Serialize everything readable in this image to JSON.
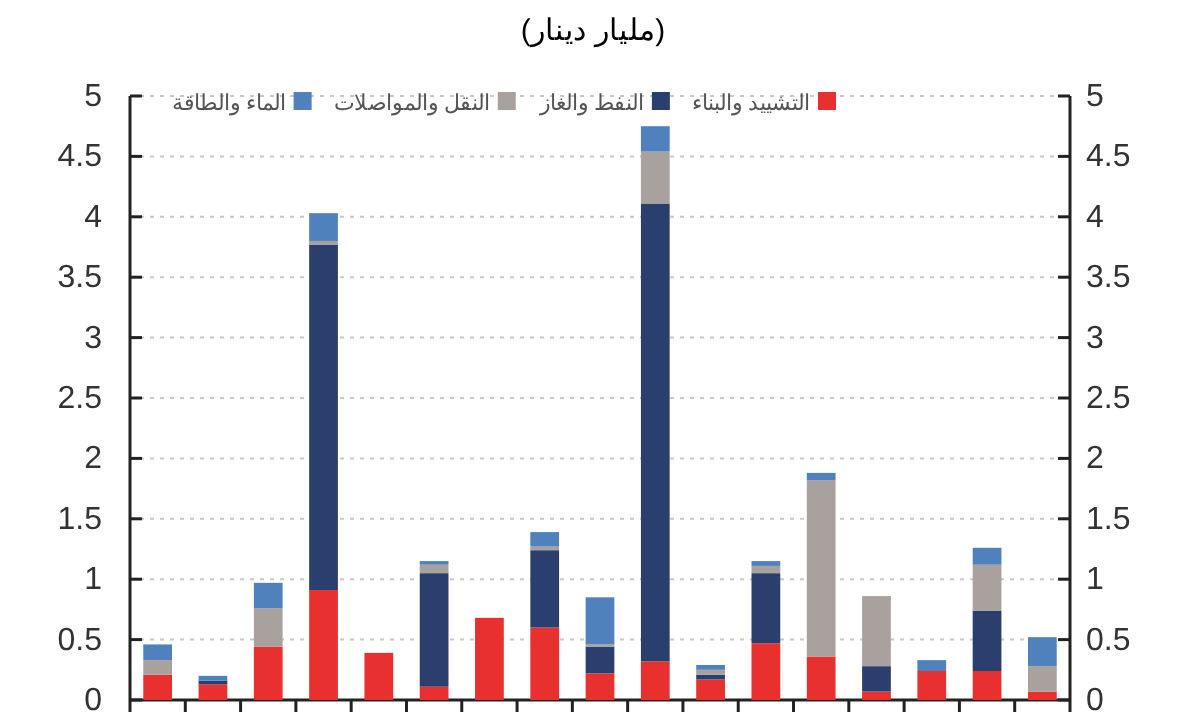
{
  "chart_data": {
    "type": "bar",
    "stacked": true,
    "title": "(مليار دينار)",
    "categories": [
      null,
      null,
      null,
      null,
      null,
      null,
      null,
      null,
      null,
      null,
      null,
      null,
      null,
      null,
      null,
      null,
      null
    ],
    "series": [
      {
        "name": "التشييد والبناء",
        "color": "#e8312f",
        "values": [
          0.21,
          0.13,
          0.44,
          0.91,
          0.39,
          0.11,
          0.68,
          0.6,
          0.22,
          0.32,
          0.17,
          0.47,
          0.36,
          0.07,
          0.24,
          0.24,
          0.07
        ]
      },
      {
        "name": "النفط والغاز",
        "color": "#2b3f6e",
        "values": [
          0,
          0.03,
          0,
          2.86,
          0,
          0.94,
          0,
          0.64,
          0.22,
          3.79,
          0.04,
          0.58,
          0,
          0.21,
          0,
          0.5,
          0
        ]
      },
      {
        "name": "النقل والمواصلات",
        "color": "#a8a19d",
        "values": [
          0.12,
          0,
          0.32,
          0.03,
          0,
          0.07,
          0,
          0.03,
          0.02,
          0.43,
          0.04,
          0.06,
          1.46,
          0.58,
          0,
          0.38,
          0.21
        ]
      },
      {
        "name": "الماء والطاقة",
        "color": "#4f81bd",
        "values": [
          0.13,
          0.04,
          0.21,
          0.23,
          0,
          0.03,
          0,
          0.12,
          0.39,
          0.21,
          0.04,
          0.04,
          0.06,
          0,
          0.09,
          0.14,
          0.24
        ]
      }
    ],
    "ylim": [
      0,
      5
    ],
    "yticks": [
      0,
      0.5,
      1,
      1.5,
      2,
      2.5,
      3,
      3.5,
      4,
      4.5,
      5
    ],
    "y2lim": [
      0,
      5
    ],
    "y2ticks": [
      0,
      0.5,
      1,
      1.5,
      2,
      2.5,
      3,
      3.5,
      4,
      4.5,
      5
    ],
    "grid": "y",
    "legend": "top"
  }
}
